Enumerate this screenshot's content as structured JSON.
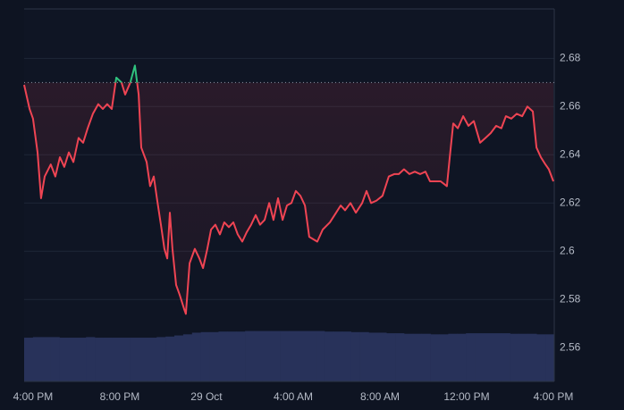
{
  "chart_data": {
    "type": "line",
    "baseline": 2.67,
    "up_color": "#2fc27e",
    "down_color": "#ef4453",
    "x": [
      -0.41,
      -0.16,
      0,
      0.21,
      0.37,
      0.54,
      0.82,
      1.03,
      1.24,
      1.44,
      1.65,
      1.86,
      2.1,
      2.31,
      2.52,
      2.76,
      3.01,
      3.22,
      3.42,
      3.63,
      3.84,
      4.08,
      4.25,
      4.49,
      4.7,
      4.87,
      4.99,
      5.24,
      5.4,
      5.57,
      5.73,
      5.9,
      6.06,
      6.19,
      6.31,
      6.43,
      6.6,
      6.76,
      6.97,
      7.05,
      7.22,
      7.46,
      7.67,
      7.84,
      8.04,
      8.21,
      8.41,
      8.62,
      8.82,
      9.03,
      9.24,
      9.44,
      9.65,
      9.86,
      10.06,
      10.27,
      10.47,
      10.68,
      10.89,
      11.09,
      11.3,
      11.51,
      11.71,
      11.92,
      12.12,
      12.33,
      12.54,
      12.74,
      13.11,
      13.36,
      13.69,
      13.98,
      14.19,
      14.39,
      14.64,
      14.89,
      15.18,
      15.38,
      15.59,
      15.84,
      16.12,
      16.41,
      16.66,
      16.87,
      17.11,
      17.36,
      17.61,
      17.86,
      18.1,
      18.31,
      18.56,
      18.8,
      19.09,
      19.22,
      19.38,
      19.59,
      19.84,
      20.08,
      20.33,
      20.62,
      20.87,
      21.11,
      21.36,
      21.6,
      21.81,
      22.06,
      22.31,
      22.56,
      22.8,
      23.05,
      23.22,
      23.42,
      23.63,
      23.79,
      24.0
    ],
    "values": [
      2.669,
      2.659,
      2.655,
      2.641,
      2.622,
      2.631,
      2.636,
      2.631,
      2.639,
      2.635,
      2.641,
      2.637,
      2.647,
      2.645,
      2.651,
      2.657,
      2.661,
      2.659,
      2.661,
      2.659,
      2.672,
      2.67,
      2.665,
      2.67,
      2.677,
      2.665,
      2.643,
      2.637,
      2.627,
      2.631,
      2.621,
      2.611,
      2.601,
      2.597,
      2.616,
      2.601,
      2.586,
      2.582,
      2.576,
      2.574,
      2.595,
      2.601,
      2.597,
      2.593,
      2.601,
      2.609,
      2.611,
      2.607,
      2.612,
      2.61,
      2.612,
      2.607,
      2.604,
      2.608,
      2.611,
      2.615,
      2.611,
      2.613,
      2.62,
      2.613,
      2.622,
      2.613,
      2.619,
      2.62,
      2.625,
      2.623,
      2.619,
      2.606,
      2.604,
      2.609,
      2.612,
      2.616,
      2.619,
      2.617,
      2.62,
      2.616,
      2.62,
      2.625,
      2.62,
      2.621,
      2.623,
      2.631,
      2.632,
      2.632,
      2.634,
      2.632,
      2.633,
      2.632,
      2.633,
      2.629,
      2.629,
      2.629,
      2.627,
      2.639,
      2.653,
      2.651,
      2.656,
      2.652,
      2.654,
      2.645,
      2.647,
      2.649,
      2.652,
      2.651,
      2.656,
      2.655,
      2.657,
      2.656,
      2.66,
      2.658,
      2.643,
      2.639,
      2.636,
      2.634,
      2.629
    ],
    "xlim": [
      -0.41,
      24.04
    ],
    "xticks": [
      {
        "value": 0,
        "label": "4:00 PM"
      },
      {
        "value": 4,
        "label": "8:00 PM"
      },
      {
        "value": 8,
        "label": "29 Oct"
      },
      {
        "value": 12,
        "label": "4:00 AM"
      },
      {
        "value": 16,
        "label": "8:00 AM"
      },
      {
        "value": 20,
        "label": "12:00 PM"
      },
      {
        "value": 24,
        "label": "4:00 PM"
      }
    ],
    "ylim": [
      2.546,
      2.7005
    ],
    "yticks": [
      2.56,
      2.58,
      2.6,
      2.62,
      2.64,
      2.66,
      2.68
    ],
    "grid": true,
    "volume": {
      "color": "#28325a",
      "ylim": [
        0,
        100
      ],
      "values": [
        79,
        80,
        80,
        80,
        79,
        79,
        79,
        80,
        79,
        79,
        79,
        79,
        79,
        79,
        79,
        80,
        81,
        83,
        85,
        88,
        89,
        89,
        90,
        90,
        90,
        91,
        91,
        91,
        91,
        91,
        91,
        91,
        91,
        91,
        90,
        90,
        90,
        89,
        89,
        88,
        88,
        87,
        87,
        86,
        86,
        86,
        85,
        85,
        86,
        86,
        87,
        87,
        87,
        87,
        87,
        86,
        86,
        86,
        85,
        85
      ]
    }
  }
}
